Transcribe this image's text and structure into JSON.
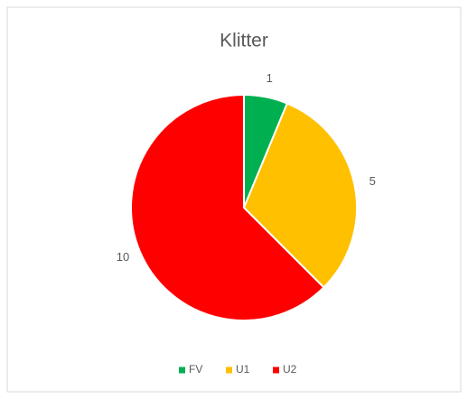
{
  "chart_data": {
    "type": "pie",
    "title": "Klitter",
    "categories": [
      "FV",
      "U1",
      "U2"
    ],
    "values": [
      1,
      5,
      10
    ],
    "colors": [
      "#00b050",
      "#ffc000",
      "#ff0000"
    ],
    "legend": "bottom"
  }
}
